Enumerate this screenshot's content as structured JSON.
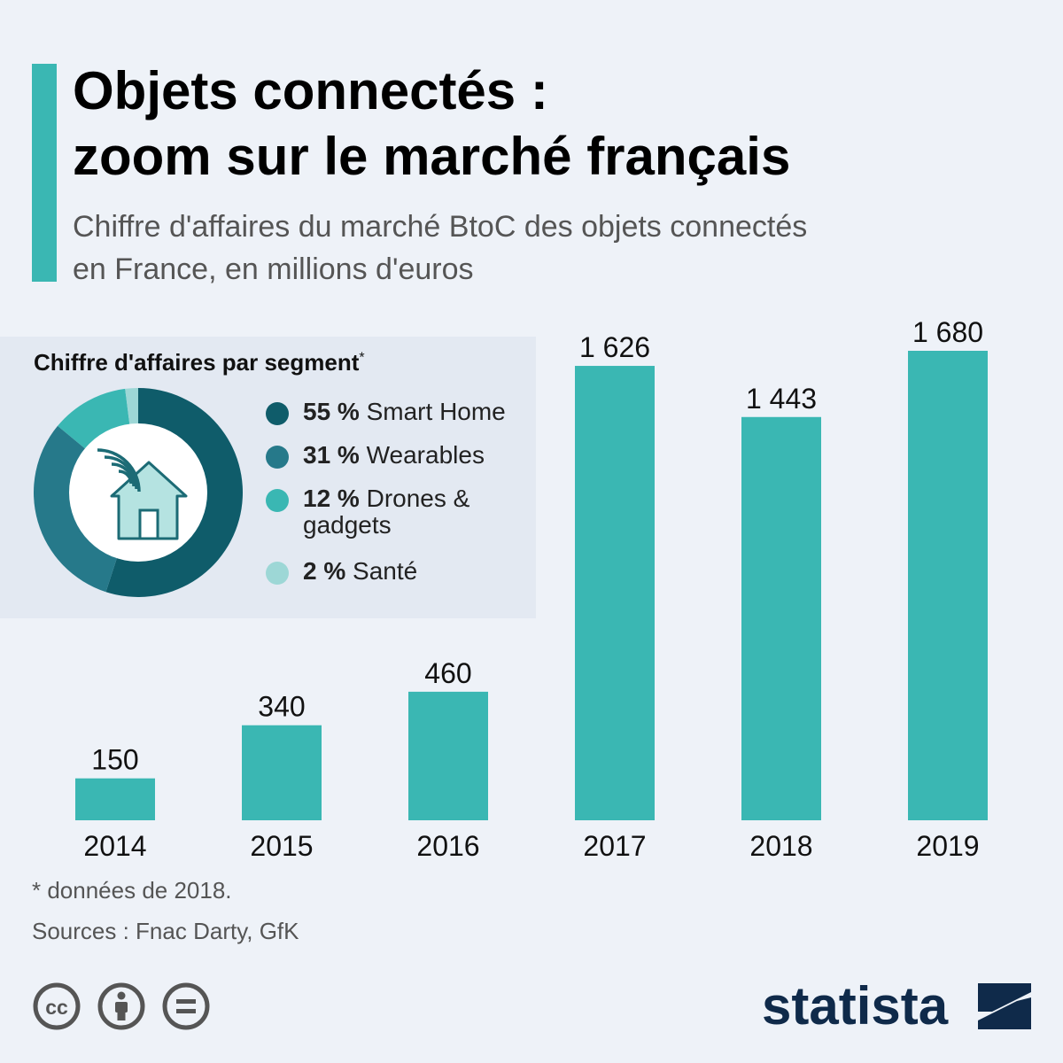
{
  "header": {
    "title_line1": "Objets connectés :",
    "title_line2": "zoom sur le marché français",
    "subtitle_line1": "Chiffre d'affaires du marché BtoC des objets connectés",
    "subtitle_line2": "en France, en millions d'euros"
  },
  "colors": {
    "accent": "#3ab7b3",
    "bar": "#3ab7b3",
    "smart_home": "#0f5c6a",
    "wearables": "#26798a",
    "drones": "#3ab7b3",
    "sante": "#9dd7d6",
    "background": "#eef2f8",
    "panel": "#e3e9f2"
  },
  "segments": {
    "title": "Chiffre d'affaires par segment",
    "title_marker": "*",
    "center_icon": "smart-home-wifi-icon",
    "items": [
      {
        "pct": "55 %",
        "label": "Smart Home",
        "value": 55,
        "color_key": "smart_home"
      },
      {
        "pct": "31 %",
        "label": "Wearables",
        "value": 31,
        "color_key": "wearables"
      },
      {
        "pct": "12 %",
        "label": "Drones & gadgets",
        "value": 12,
        "color_key": "drones"
      },
      {
        "pct": "2 %",
        "label": "Santé",
        "value": 2,
        "color_key": "sante"
      }
    ]
  },
  "chart_data": [
    {
      "type": "bar",
      "categories": [
        "2014",
        "2015",
        "2016",
        "2017",
        "2018",
        "2019"
      ],
      "values": [
        150,
        340,
        460,
        1626,
        1443,
        1680
      ],
      "value_labels": [
        "150",
        "340",
        "460",
        "1 626",
        "1 443",
        "1 680"
      ],
      "title": "Chiffre d'affaires du marché BtoC des objets connectés en France, en millions d'euros",
      "ylim": [
        0,
        1680
      ],
      "grid": false,
      "legend": "none"
    },
    {
      "type": "pie",
      "categories": [
        "Smart Home",
        "Wearables",
        "Drones & gadgets",
        "Santé"
      ],
      "values": [
        55,
        31,
        12,
        2
      ],
      "title": "Chiffre d'affaires par segment",
      "legend": "right"
    }
  ],
  "footer": {
    "footnote": "* données de 2018.",
    "source": "Sources : Fnac Darty, GfK",
    "license_icons": [
      "creative-commons-icon",
      "attribution-icon",
      "no-derivatives-icon"
    ],
    "brand": "statista"
  }
}
